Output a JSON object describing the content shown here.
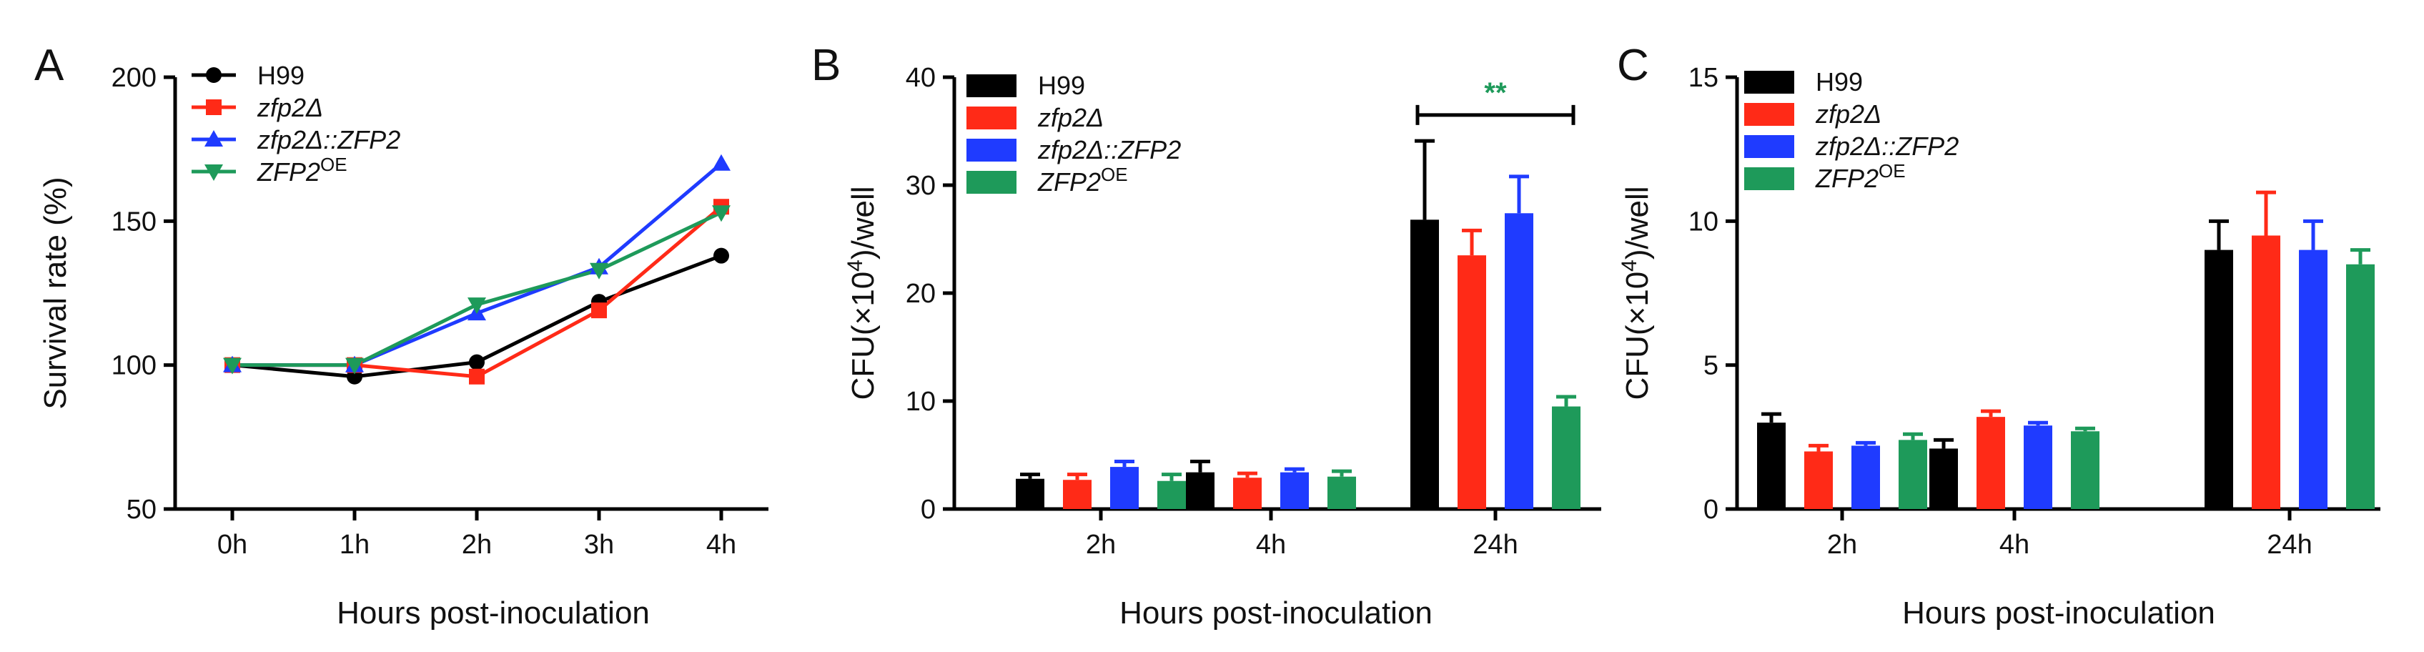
{
  "colors": {
    "black": "#000000",
    "red": "#ff2a17",
    "blue": "#1f3bff",
    "green": "#1e9a5a"
  },
  "chart_data": [
    {
      "panel": "A",
      "type": "line",
      "title": "",
      "xlabel": "Hours post-inoculation",
      "ylabel": "Survival rate (%)",
      "categories": [
        "0h",
        "1h",
        "2h",
        "3h",
        "4h"
      ],
      "ylim": [
        50,
        200
      ],
      "yticks": [
        "50",
        "100",
        "150",
        "200"
      ],
      "legend_position": "top-left",
      "series": [
        {
          "name": "H99",
          "style": "plain",
          "color": "#000000",
          "marker": "circle",
          "values": [
            100,
            96,
            101,
            122,
            138
          ]
        },
        {
          "name": "zfp2Δ",
          "style": "italic",
          "color": "#ff2a17",
          "marker": "square",
          "values": [
            100,
            100,
            96,
            119,
            155
          ]
        },
        {
          "name": "zfp2Δ::ZFP2",
          "style": "italic",
          "color": "#1f3bff",
          "marker": "triangle-up",
          "values": [
            100,
            100,
            118,
            134,
            170
          ]
        },
        {
          "name": "ZFP2",
          "sup": "OE",
          "style": "italic",
          "color": "#1e9a5a",
          "marker": "triangle-down",
          "values": [
            100,
            100,
            121,
            133,
            153
          ]
        }
      ]
    },
    {
      "panel": "B",
      "type": "bar",
      "title": "",
      "xlabel": "Hours post-inoculation",
      "ylabel_prefix": "CFU(×10",
      "ylabel_sup": "4",
      "ylabel_suffix": ")/well",
      "categories": [
        "2h",
        "4h",
        "24h"
      ],
      "ylim": [
        0,
        40
      ],
      "yticks": [
        "0",
        "10",
        "20",
        "30",
        "40"
      ],
      "legend_position": "top-left",
      "series": [
        {
          "name": "H99",
          "style": "plain",
          "color": "#000000",
          "values": [
            2.8,
            3.4,
            26.8
          ],
          "errors": [
            0.4,
            1.0,
            7.3
          ]
        },
        {
          "name": "zfp2Δ",
          "style": "italic",
          "color": "#ff2a17",
          "values": [
            2.7,
            2.9,
            23.5
          ],
          "errors": [
            0.5,
            0.4,
            2.3
          ]
        },
        {
          "name": "zfp2Δ::ZFP2",
          "style": "italic",
          "color": "#1f3bff",
          "values": [
            3.9,
            3.4,
            27.4
          ],
          "errors": [
            0.5,
            0.3,
            3.4
          ]
        },
        {
          "name": "ZFP2",
          "sup": "OE",
          "style": "italic",
          "color": "#1e9a5a",
          "values": [
            2.6,
            3.0,
            9.5
          ],
          "errors": [
            0.6,
            0.5,
            0.9
          ]
        }
      ],
      "annotation": {
        "text": "**",
        "category": "24h",
        "from_series": 0,
        "to_series": 3,
        "y": 36.5,
        "color": "#1e9a5a"
      }
    },
    {
      "panel": "C",
      "type": "bar",
      "title": "",
      "xlabel": "Hours post-inoculation",
      "ylabel_prefix": "CFU(×10",
      "ylabel_sup": "4",
      "ylabel_suffix": ")/well",
      "categories": [
        "2h",
        "4h",
        "24h"
      ],
      "ylim": [
        0,
        15
      ],
      "yticks": [
        "0",
        "5",
        "10",
        "15"
      ],
      "legend_position": "top-left",
      "series": [
        {
          "name": "H99",
          "style": "plain",
          "color": "#000000",
          "values": [
            3.0,
            2.1,
            9.0
          ],
          "errors": [
            0.3,
            0.3,
            1.0
          ]
        },
        {
          "name": "zfp2Δ",
          "style": "italic",
          "color": "#ff2a17",
          "values": [
            2.0,
            3.2,
            9.5
          ],
          "errors": [
            0.2,
            0.2,
            1.5
          ]
        },
        {
          "name": "zfp2Δ::ZFP2",
          "style": "italic",
          "color": "#1f3bff",
          "values": [
            2.2,
            2.9,
            9.0
          ],
          "errors": [
            0.1,
            0.1,
            1.0
          ]
        },
        {
          "name": "ZFP2",
          "sup": "OE",
          "style": "italic",
          "color": "#1e9a5a",
          "values": [
            2.4,
            2.7,
            8.5
          ],
          "errors": [
            0.2,
            0.1,
            0.5
          ]
        }
      ]
    }
  ]
}
